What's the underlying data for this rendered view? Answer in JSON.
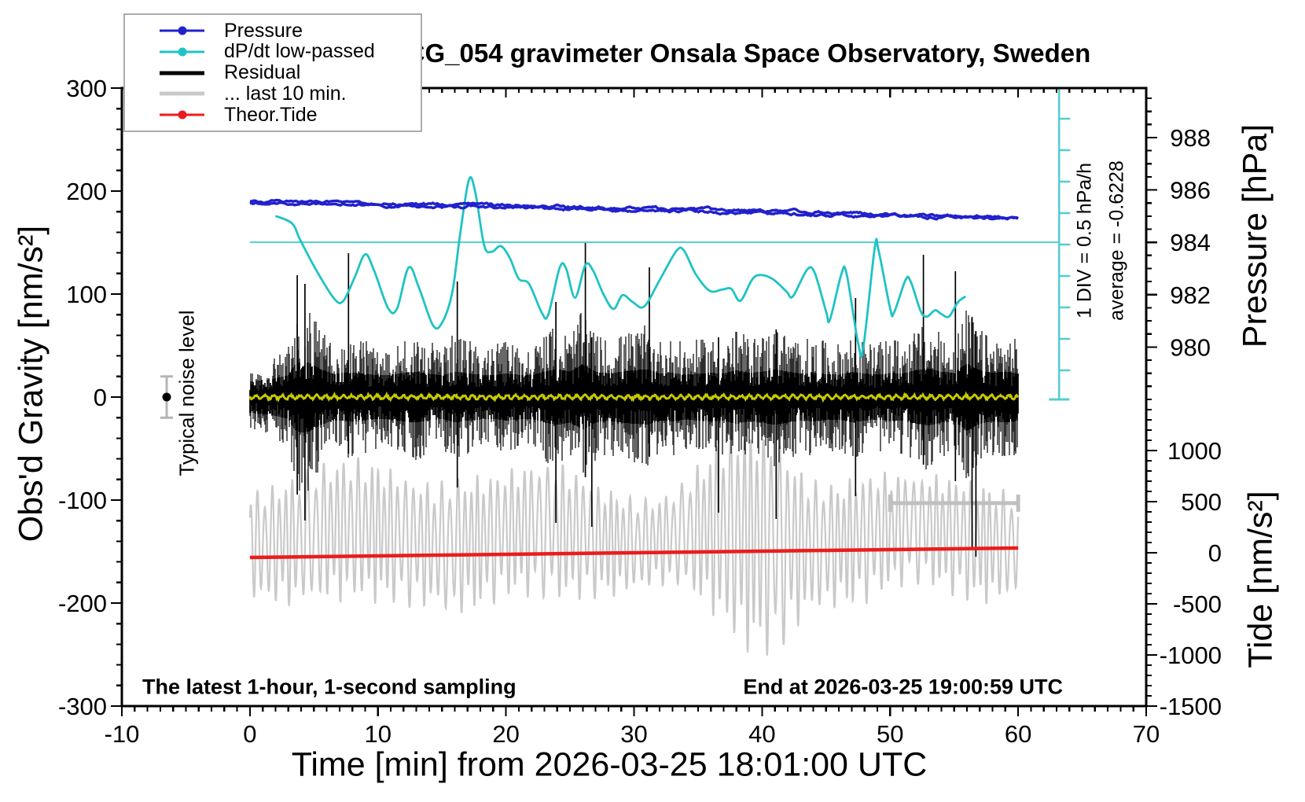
{
  "title": "SCG_054 gravimeter Onsala Space Observatory, Sweden",
  "legend": {
    "items": [
      {
        "label": "Pressure",
        "color": "#2121cd",
        "dot": true,
        "weight": 3
      },
      {
        "label": "dP/dt low-passed",
        "color": "#1fc3c3",
        "dot": true,
        "weight": 3
      },
      {
        "label": "Residual",
        "color": "#000000",
        "dot": false,
        "weight": 5
      },
      {
        "label": "... last 10 min.",
        "color": "#c9c9c9",
        "dot": false,
        "weight": 5
      },
      {
        "label": "Theor.Tide",
        "color": "#ec1c1c",
        "dot": true,
        "weight": 3
      }
    ]
  },
  "annotations": {
    "noise_label": "Typical noise level",
    "div_label": "1 DIV = 0.5 hPa/h",
    "avg_label": "average = -0.6228",
    "bottom_left": "The latest 1-hour, 1-second sampling",
    "bottom_right": "End at 2026-03-25 19:00:59 UTC"
  },
  "axes": {
    "x": {
      "label": "Time [min] from 2026-03-25 18:01:00 UTC",
      "min": -10,
      "max": 70,
      "major_ticks": [
        -10,
        0,
        10,
        20,
        30,
        40,
        50,
        60,
        70
      ],
      "minor_step": 1
    },
    "gravity": {
      "label": "Obs'd Gravity [nm/s²]",
      "min": -300,
      "max": 300,
      "major_ticks": [
        -300,
        -200,
        -100,
        0,
        100,
        200,
        300
      ],
      "minor_step": 20
    },
    "pressure": {
      "label": "Pressure [hPa]",
      "min": 978,
      "max": 989.5,
      "major_ticks": [
        980,
        982,
        984,
        986,
        988
      ],
      "minor_step": 0.5
    },
    "tide": {
      "label": "Tide [nm/s²]",
      "min": -1500,
      "max": 1400,
      "major_ticks": [
        -1500,
        -1000,
        -500,
        0,
        500,
        1000
      ],
      "minor_step": 100
    }
  },
  "chart_data": {
    "type": "line",
    "x_unit": "min",
    "series": [
      {
        "name": "Pressure",
        "unit": "hPa",
        "color": "#2121cd",
        "points": [
          [
            0,
            985.52
          ],
          [
            3,
            985.51
          ],
          [
            6,
            985.49
          ],
          [
            9,
            985.47
          ],
          [
            12,
            985.44
          ],
          [
            15,
            985.43
          ],
          [
            18,
            985.4
          ],
          [
            21,
            985.36
          ],
          [
            24,
            985.33
          ],
          [
            27,
            985.3
          ],
          [
            30,
            985.27
          ],
          [
            33,
            985.24
          ],
          [
            36,
            985.21
          ],
          [
            39,
            985.17
          ],
          [
            42,
            985.14
          ],
          [
            45,
            985.1
          ],
          [
            48,
            985.06
          ],
          [
            51,
            985.03
          ],
          [
            54,
            984.99
          ],
          [
            57,
            984.95
          ],
          [
            60,
            984.9
          ]
        ]
      },
      {
        "name": "dP/dt low-passed",
        "unit": "hPa/h",
        "color": "#1fc3c3",
        "zero_ref_hpa": 984,
        "hpa_per_div": 0.5,
        "points": [
          [
            2.0,
            0.42
          ],
          [
            3.3,
            0.3
          ],
          [
            3.9,
            0.05
          ],
          [
            5.2,
            -0.45
          ],
          [
            6.6,
            -0.9
          ],
          [
            7.3,
            -0.93
          ],
          [
            8.2,
            -0.55
          ],
          [
            9.0,
            -0.19
          ],
          [
            9.7,
            -0.45
          ],
          [
            10.8,
            -1.05
          ],
          [
            11.5,
            -1.05
          ],
          [
            12.4,
            -0.4
          ],
          [
            13.2,
            -0.72
          ],
          [
            14.3,
            -1.32
          ],
          [
            15.0,
            -1.28
          ],
          [
            15.8,
            -0.8
          ],
          [
            16.4,
            0.1
          ],
          [
            17.1,
            0.99
          ],
          [
            17.6,
            0.8
          ],
          [
            18.3,
            -0.05
          ],
          [
            18.9,
            -0.15
          ],
          [
            19.6,
            -0.06
          ],
          [
            20.3,
            -0.25
          ],
          [
            21.0,
            -0.58
          ],
          [
            21.8,
            -0.66
          ],
          [
            22.8,
            -1.12
          ],
          [
            23.3,
            -1.15
          ],
          [
            24.2,
            -0.4
          ],
          [
            24.7,
            -0.42
          ],
          [
            25.4,
            -0.88
          ],
          [
            26.2,
            -0.36
          ],
          [
            26.8,
            -0.45
          ],
          [
            27.6,
            -0.82
          ],
          [
            28.4,
            -1.06
          ],
          [
            29.1,
            -0.84
          ],
          [
            29.9,
            -0.95
          ],
          [
            30.8,
            -1.02
          ],
          [
            32.0,
            -0.6
          ],
          [
            33.3,
            -0.14
          ],
          [
            33.9,
            -0.13
          ],
          [
            34.8,
            -0.5
          ],
          [
            35.9,
            -0.77
          ],
          [
            36.9,
            -0.75
          ],
          [
            37.6,
            -0.74
          ],
          [
            38.3,
            -0.93
          ],
          [
            39.2,
            -0.6
          ],
          [
            39.8,
            -0.52
          ],
          [
            40.8,
            -0.58
          ],
          [
            41.9,
            -0.78
          ],
          [
            42.4,
            -0.86
          ],
          [
            43.5,
            -0.44
          ],
          [
            44.1,
            -0.48
          ],
          [
            45.0,
            -1.1
          ],
          [
            45.3,
            -1.23
          ],
          [
            46.2,
            -0.5
          ],
          [
            46.6,
            -0.5
          ],
          [
            47.5,
            -1.6
          ],
          [
            47.9,
            -1.68
          ],
          [
            48.8,
            -0.09
          ],
          [
            49.1,
            -0.13
          ],
          [
            50.0,
            -1.05
          ],
          [
            50.3,
            -1.12
          ],
          [
            51.2,
            -0.6
          ],
          [
            51.6,
            -0.62
          ],
          [
            52.4,
            -1.1
          ],
          [
            52.9,
            -1.18
          ],
          [
            53.5,
            -1.08
          ],
          [
            54.0,
            -1.14
          ],
          [
            54.6,
            -1.18
          ],
          [
            55.3,
            -0.95
          ],
          [
            55.9,
            -0.86
          ]
        ]
      },
      {
        "name": "Theor.Tide",
        "unit": "nm/s²",
        "color": "#ec1c1c",
        "points": [
          [
            0,
            -46
          ],
          [
            10,
            -31
          ],
          [
            20,
            -15
          ],
          [
            30,
            0
          ],
          [
            40,
            15
          ],
          [
            50,
            31
          ],
          [
            60,
            46
          ]
        ]
      },
      {
        "name": "Residual",
        "unit": "nm/s²",
        "color": "#000000",
        "mean": 0,
        "envelope": [
          [
            0,
            30
          ],
          [
            1,
            35
          ],
          [
            2,
            40
          ],
          [
            3,
            50
          ],
          [
            3.5,
            85
          ],
          [
            4,
            95
          ],
          [
            4.7,
            90
          ],
          [
            5.5,
            70
          ],
          [
            6.5,
            55
          ],
          [
            8,
            60
          ],
          [
            9,
            55
          ],
          [
            10,
            50
          ],
          [
            11,
            52
          ],
          [
            12,
            58
          ],
          [
            13,
            62
          ],
          [
            14,
            55
          ],
          [
            15,
            50
          ],
          [
            16,
            62
          ],
          [
            17,
            56
          ],
          [
            18,
            52
          ],
          [
            19,
            50
          ],
          [
            20,
            56
          ],
          [
            21,
            52
          ],
          [
            22,
            50
          ],
          [
            23,
            62
          ],
          [
            24,
            70
          ],
          [
            25,
            62
          ],
          [
            26,
            85
          ],
          [
            27,
            62
          ],
          [
            28,
            56
          ],
          [
            29,
            62
          ],
          [
            30,
            66
          ],
          [
            31,
            70
          ],
          [
            32,
            56
          ],
          [
            33,
            58
          ],
          [
            34,
            52
          ],
          [
            35,
            56
          ],
          [
            36,
            58
          ],
          [
            37,
            56
          ],
          [
            38,
            66
          ],
          [
            39,
            58
          ],
          [
            40,
            62
          ],
          [
            41,
            70
          ],
          [
            42,
            62
          ],
          [
            43,
            56
          ],
          [
            44,
            58
          ],
          [
            45,
            54
          ],
          [
            46,
            52
          ],
          [
            47,
            62
          ],
          [
            48,
            56
          ],
          [
            49,
            52
          ],
          [
            50,
            58
          ],
          [
            51,
            56
          ],
          [
            52,
            66
          ],
          [
            53,
            72
          ],
          [
            54,
            62
          ],
          [
            55,
            58
          ],
          [
            56,
            88
          ],
          [
            57,
            66
          ],
          [
            58,
            58
          ],
          [
            59,
            62
          ],
          [
            60,
            56
          ]
        ],
        "spikes": [
          [
            3.7,
            118,
            95
          ],
          [
            4.3,
            110,
            120
          ],
          [
            7.7,
            140,
            55
          ],
          [
            16.2,
            112,
            88
          ],
          [
            23.9,
            92,
            122
          ],
          [
            26.2,
            150,
            78
          ],
          [
            26.7,
            58,
            126
          ],
          [
            31.2,
            126,
            58
          ],
          [
            36.6,
            58,
            112
          ],
          [
            41.1,
            66,
            118
          ],
          [
            47.3,
            96,
            96
          ],
          [
            52.6,
            138,
            66
          ],
          [
            55.1,
            122,
            82
          ],
          [
            56.4,
            78,
            148
          ],
          [
            56.7,
            64,
            155
          ]
        ]
      },
      {
        "name": "... last 10 min.",
        "unit": "nm/s² (tide scale)",
        "color": "#c9c9c9",
        "center_tide": -208,
        "period_min": 0.55,
        "envelope_tide": [
          [
            0,
            538
          ],
          [
            2,
            615
          ],
          [
            4,
            677
          ],
          [
            6,
            708
          ],
          [
            8,
            738
          ],
          [
            10,
            708
          ],
          [
            12,
            677
          ],
          [
            14,
            631
          ],
          [
            16,
            708
          ],
          [
            18,
            677
          ],
          [
            20,
            646
          ],
          [
            22,
            677
          ],
          [
            24,
            708
          ],
          [
            26,
            631
          ],
          [
            28,
            554
          ],
          [
            30,
            477
          ],
          [
            32,
            446
          ],
          [
            34,
            554
          ],
          [
            36,
            831
          ],
          [
            37,
            985
          ],
          [
            38,
            1123
          ],
          [
            39,
            1169
          ],
          [
            40,
            1215
          ],
          [
            41,
            1138
          ],
          [
            42,
            969
          ],
          [
            43,
            785
          ],
          [
            44,
            677
          ],
          [
            46,
            631
          ],
          [
            48,
            662
          ],
          [
            50,
            600
          ],
          [
            52,
            554
          ],
          [
            54,
            585
          ],
          [
            56,
            631
          ],
          [
            58,
            585
          ],
          [
            60,
            538
          ]
        ]
      },
      {
        "name": "Residual low-passed",
        "unit": "nm/s²",
        "color": "#c9c900",
        "level": 0
      }
    ],
    "reference_line": {
      "pressure_hpa": 984,
      "color": "#55cdcd",
      "t_start": 0,
      "t_end": 63.2
    },
    "scale_bar": {
      "label": "1 DIV = 0.5 hPa/h",
      "average": -0.6228,
      "color": "#55cdcd",
      "t": 63.2
    },
    "noise_marker": {
      "t": -6.5,
      "value": 0,
      "error": 20
    },
    "last10_bar": {
      "t1": 50,
      "t2": 60,
      "gravity": -103
    }
  }
}
